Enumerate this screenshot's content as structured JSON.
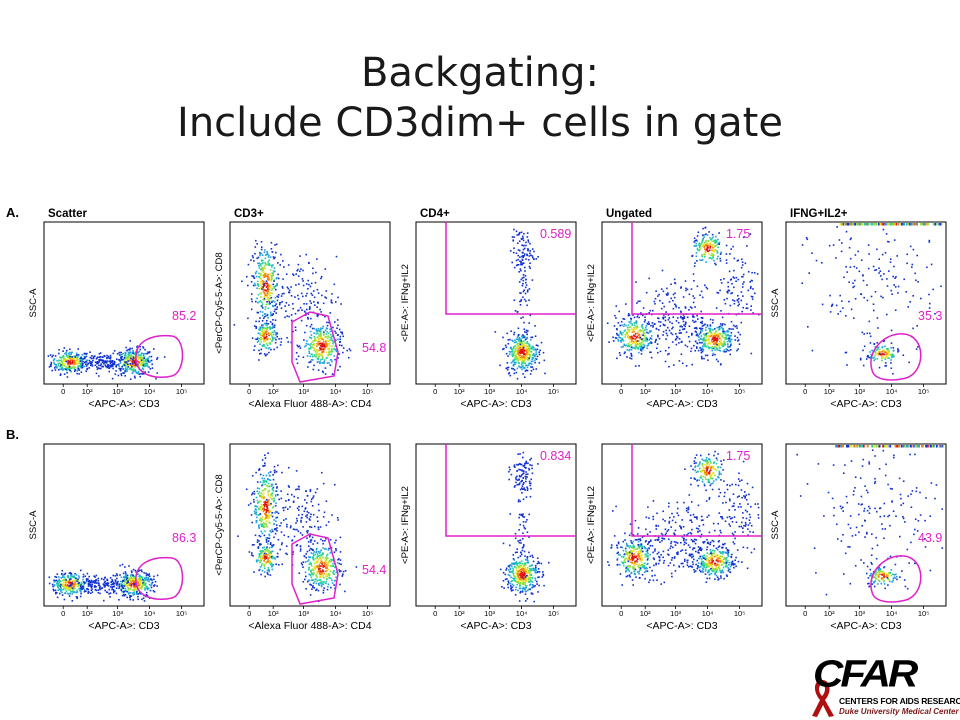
{
  "slide": {
    "title_line1": "Backgating:",
    "title_line2": "Include CD3dim+ cells in gate"
  },
  "colors": {
    "gate": "#e020c8",
    "axis": "#000000",
    "density_scale": [
      "#1030d0",
      "#20a0e0",
      "#20d0a0",
      "#90e040",
      "#f0e020",
      "#f08010",
      "#e01010"
    ]
  },
  "panels": [
    {
      "row_label": "A.",
      "plots": [
        {
          "title": "Scatter",
          "xlabel": "<APC-A>: CD3",
          "ylabel": "SSC-A",
          "gate_value": "85.2",
          "gate_type": "oval"
        },
        {
          "title": "CD3+",
          "xlabel": "<Alexa Fluor 488-A>: CD4",
          "ylabel": "<PerCP-Cy5-5-A>: CD8",
          "gate_value": "54.8",
          "gate_type": "polygon"
        },
        {
          "title": "CD4+",
          "xlabel": "<APC-A>: CD3",
          "ylabel": "<PE-A>: IFNg+IL2",
          "gate_value": "0.589",
          "gate_type": "quadrant"
        },
        {
          "title": "Ungated",
          "xlabel": "<APC-A>: CD3",
          "ylabel": "<PE-A>: IFNg+IL2",
          "gate_value": "1.75",
          "gate_type": "quadrant"
        },
        {
          "title": "IFNG+IL2+",
          "xlabel": "<APC-A>: CD3",
          "ylabel": "SSC-A",
          "gate_value": "35.3",
          "gate_type": "oval"
        }
      ]
    },
    {
      "row_label": "B.",
      "plots": [
        {
          "title": "",
          "xlabel": "<APC-A>: CD3",
          "ylabel": "SSC-A",
          "gate_value": "86.3",
          "gate_type": "oval"
        },
        {
          "title": "",
          "xlabel": "<Alexa Fluor 488-A>: CD4",
          "ylabel": "<PerCP-Cy5-5-A>: CD8",
          "gate_value": "54.4",
          "gate_type": "polygon"
        },
        {
          "title": "",
          "xlabel": "<APC-A>: CD3",
          "ylabel": "<PE-A>: IFNg+IL2",
          "gate_value": "0.834",
          "gate_type": "quadrant"
        },
        {
          "title": "",
          "xlabel": "<APC-A>: CD3",
          "ylabel": "<PE-A>: IFNg+IL2",
          "gate_value": "1.75",
          "gate_type": "quadrant"
        },
        {
          "title": "",
          "xlabel": "<APC-A>: CD3",
          "ylabel": "SSC-A",
          "gate_value": "43.9",
          "gate_type": "oval"
        }
      ]
    }
  ],
  "log_axis_ticks": [
    "0",
    "10²",
    "10³",
    "10⁴",
    "10⁵"
  ],
  "logo": {
    "wordmark": "CFAR",
    "line1": "CENTERS FOR AIDS RESEARCH",
    "line2": "Duke University Medical Center"
  }
}
